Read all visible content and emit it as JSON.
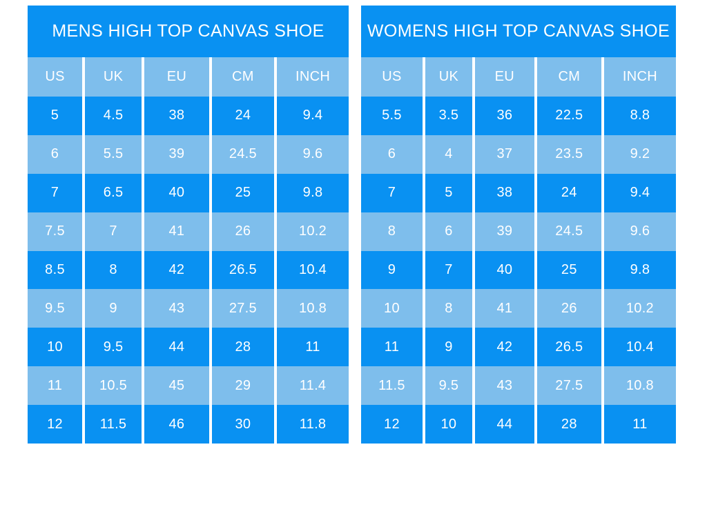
{
  "colors": {
    "row_dark": "#0991f2",
    "row_light": "#7ebeec",
    "text": "#ffffff",
    "background": "#ffffff"
  },
  "chart_data": [
    {
      "type": "table",
      "title": "MENS HIGH TOP CANVAS SHOE",
      "columns": [
        "US",
        "UK",
        "EU",
        "CM",
        "INCH"
      ],
      "rows": [
        [
          "5",
          "4.5",
          "38",
          "24",
          "9.4"
        ],
        [
          "6",
          "5.5",
          "39",
          "24.5",
          "9.6"
        ],
        [
          "7",
          "6.5",
          "40",
          "25",
          "9.8"
        ],
        [
          "7.5",
          "7",
          "41",
          "26",
          "10.2"
        ],
        [
          "8.5",
          "8",
          "42",
          "26.5",
          "10.4"
        ],
        [
          "9.5",
          "9",
          "43",
          "27.5",
          "10.8"
        ],
        [
          "10",
          "9.5",
          "44",
          "28",
          "11"
        ],
        [
          "11",
          "10.5",
          "45",
          "29",
          "11.4"
        ],
        [
          "12",
          "11.5",
          "46",
          "30",
          "11.8"
        ]
      ],
      "layout_hints": {
        "first_data_row_shade": "dark",
        "row_striping": "alternating dark/light blue"
      }
    },
    {
      "type": "table",
      "title": "WOMENS HIGH TOP CANVAS SHOE",
      "columns": [
        "US",
        "UK",
        "EU",
        "CM",
        "INCH"
      ],
      "rows": [
        [
          "5.5",
          "3.5",
          "36",
          "22.5",
          "8.8"
        ],
        [
          "6",
          "4",
          "37",
          "23.5",
          "9.2"
        ],
        [
          "7",
          "5",
          "38",
          "24",
          "9.4"
        ],
        [
          "8",
          "6",
          "39",
          "24.5",
          "9.6"
        ],
        [
          "9",
          "7",
          "40",
          "25",
          "9.8"
        ],
        [
          "10",
          "8",
          "41",
          "26",
          "10.2"
        ],
        [
          "11",
          "9",
          "42",
          "26.5",
          "10.4"
        ],
        [
          "11.5",
          "9.5",
          "43",
          "27.5",
          "10.8"
        ],
        [
          "12",
          "10",
          "44",
          "28",
          "11"
        ]
      ],
      "layout_hints": {
        "first_data_row_shade": "dark",
        "row_striping": "alternating dark/light blue"
      }
    }
  ]
}
